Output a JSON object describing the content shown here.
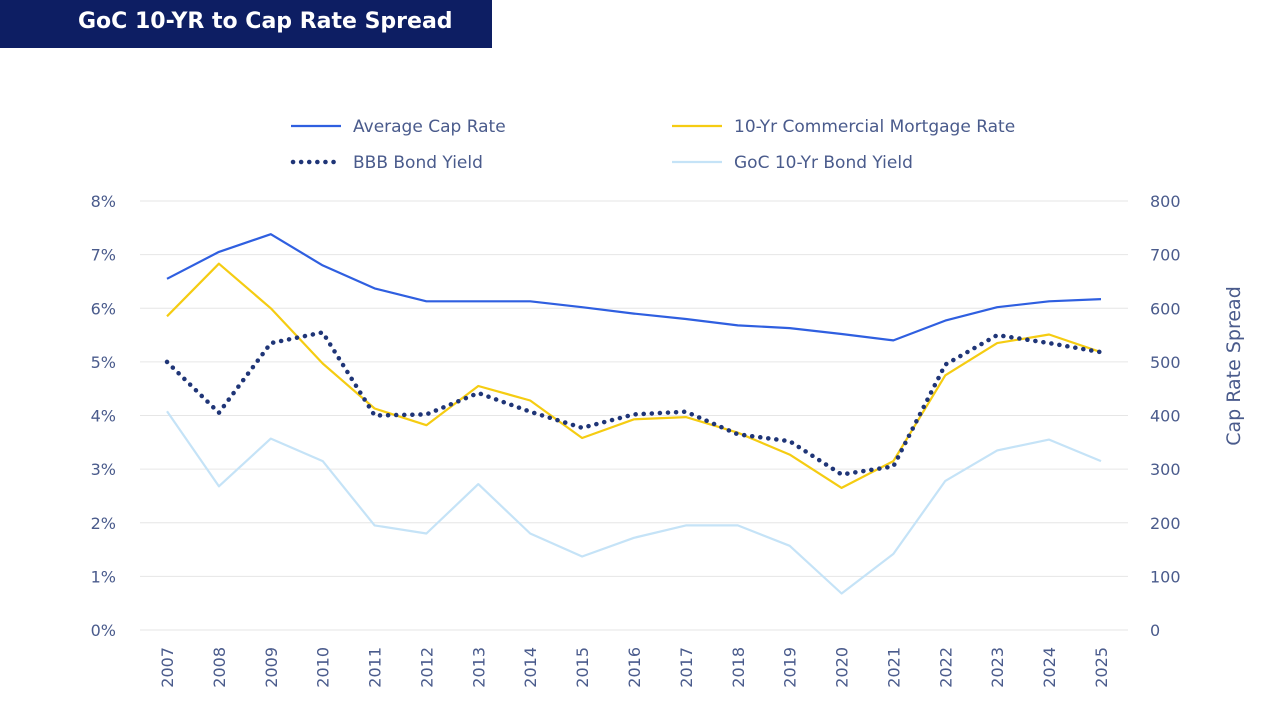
{
  "banner": {
    "title": "GoC 10-YR to Cap Rate Spread"
  },
  "colors": {
    "banner_bg": "#0d1e63",
    "avg_cap_rate": "#2f5fe0",
    "commercial_mortgage": "#f5cc12",
    "bbb_bond": "#1f3577",
    "goc_bond": "#c5e3f7",
    "axis_text": "#4a5b8c",
    "grid": "#e6e6e6"
  },
  "chart_data": {
    "type": "line",
    "title": "GoC 10-YR to Cap Rate Spread",
    "ylabel_left": "",
    "ylabel_right": "Cap Rate Spread",
    "xlabel": "",
    "ylim_left": [
      0,
      8
    ],
    "ylim_right": [
      0,
      800
    ],
    "yticks_left": [
      "0%",
      "1%",
      "2%",
      "3%",
      "4%",
      "5%",
      "6%",
      "7%",
      "8%"
    ],
    "yticks_right": [
      "0",
      "100",
      "200",
      "300",
      "400",
      "500",
      "600",
      "700",
      "800"
    ],
    "grid": true,
    "legend_position": "top",
    "categories": [
      "2007",
      "2008",
      "2009",
      "2010",
      "2011",
      "2012",
      "2013",
      "2014",
      "2015",
      "2016",
      "2017",
      "2018",
      "2019",
      "2020",
      "2021",
      "2022",
      "2023",
      "2024",
      "2025"
    ],
    "series": [
      {
        "name": "Average Cap Rate",
        "style": "solid",
        "color": "#2f5fe0",
        "values": [
          6.55,
          7.05,
          7.38,
          6.8,
          6.37,
          6.13,
          6.13,
          6.13,
          6.02,
          5.9,
          5.8,
          5.68,
          5.63,
          5.52,
          5.4,
          5.77,
          6.02,
          6.13,
          6.17
        ]
      },
      {
        "name": "10-Yr Commercial Mortgage Rate",
        "style": "solid",
        "color": "#f5cc12",
        "values": [
          5.85,
          6.83,
          6.0,
          4.97,
          4.13,
          3.82,
          4.55,
          4.28,
          3.58,
          3.93,
          3.97,
          3.68,
          3.27,
          2.65,
          3.15,
          4.75,
          5.35,
          5.51,
          5.18
        ]
      },
      {
        "name": "BBB Bond Yield",
        "style": "dotted",
        "color": "#1f3577",
        "values": [
          5.0,
          4.05,
          5.35,
          5.55,
          4.0,
          4.02,
          4.42,
          4.07,
          3.77,
          4.02,
          4.07,
          3.65,
          3.52,
          2.9,
          3.05,
          4.95,
          5.5,
          5.35,
          5.18
        ]
      },
      {
        "name": "GoC 10-Yr Bond Yield",
        "style": "solid",
        "color": "#c5e3f7",
        "values": [
          4.08,
          2.68,
          3.57,
          3.15,
          1.95,
          1.8,
          2.72,
          1.8,
          1.37,
          1.72,
          1.95,
          1.95,
          1.57,
          0.68,
          1.42,
          2.78,
          3.35,
          3.55,
          3.15
        ]
      }
    ]
  }
}
